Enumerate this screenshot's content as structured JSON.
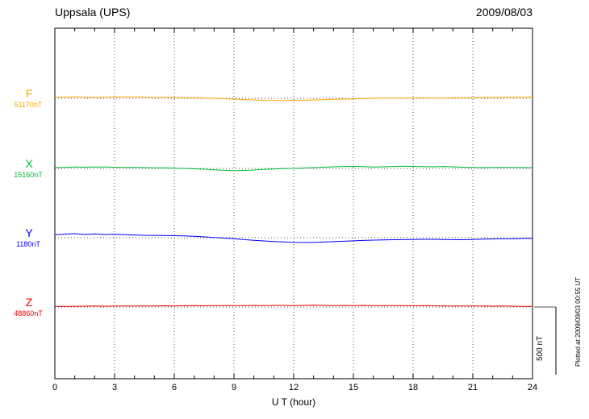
{
  "header": {
    "station": "Uppsala (UPS)",
    "date": "2009/08/03"
  },
  "axis": {
    "xlabel": "U T (hour)"
  },
  "scale_bar_label": "500 nT",
  "plotted_at": "Plotted at 2009/09/03 00:55 UT",
  "chart_data": {
    "type": "line",
    "title": "Uppsala (UPS)",
    "date": "2009/08/03",
    "xlabel": "U T (hour)",
    "x_range": [
      0,
      24
    ],
    "x_ticks": [
      0,
      3,
      6,
      9,
      12,
      15,
      18,
      21,
      24
    ],
    "grid": "vertical dotted lines every 3 hours; dotted horizontal baseline per trace",
    "scale_bar_nT": 500,
    "units": "nT deviation from listed baseline",
    "series": [
      {
        "name": "F",
        "baseline_label": "51170nT",
        "baseline_nT": 51170,
        "color": "#ffa500",
        "values": [
          8,
          9,
          10,
          9,
          8,
          9,
          10,
          11,
          10,
          9,
          8,
          7,
          6,
          5,
          4,
          2,
          0,
          -3,
          -6,
          -9,
          -12,
          -14,
          -15,
          -16,
          -15,
          -14,
          -12,
          -10,
          -8,
          -6,
          -4,
          -2,
          0,
          1,
          2,
          2,
          3,
          3,
          2,
          2,
          3,
          4,
          5,
          6,
          6,
          7,
          8,
          9,
          10
        ]
      },
      {
        "name": "X",
        "baseline_label": "15160nT",
        "baseline_nT": 15160,
        "color": "#00bb33",
        "values": [
          6,
          8,
          10,
          9,
          11,
          10,
          9,
          8,
          7,
          6,
          5,
          4,
          2,
          0,
          -3,
          -6,
          -10,
          -14,
          -17,
          -15,
          -12,
          -8,
          -5,
          -2,
          0,
          3,
          6,
          9,
          12,
          14,
          15,
          13,
          11,
          12,
          14,
          16,
          15,
          13,
          12,
          14,
          12,
          9,
          7,
          6,
          7,
          8,
          7,
          6,
          6
        ]
      },
      {
        "name": "Y",
        "baseline_label": "1180nT",
        "baseline_nT": 1180,
        "color": "#0000ff",
        "values": [
          22,
          26,
          30,
          24,
          28,
          23,
          25,
          22,
          20,
          18,
          17,
          16,
          15,
          13,
          10,
          6,
          2,
          -3,
          -8,
          -14,
          -19,
          -24,
          -28,
          -31,
          -34,
          -35,
          -34,
          -32,
          -29,
          -26,
          -23,
          -20,
          -18,
          -16,
          -15,
          -14,
          -13,
          -12,
          -12,
          -13,
          -14,
          -15,
          -13,
          -11,
          -9,
          -8,
          -7,
          -6,
          -5
        ]
      },
      {
        "name": "Z",
        "baseline_label": "48860nT",
        "baseline_nT": 48860,
        "color": "#ee0000",
        "values": [
          5,
          4,
          5,
          6,
          7,
          6,
          7,
          8,
          7,
          8,
          8,
          9,
          8,
          9,
          10,
          9,
          10,
          11,
          10,
          11,
          12,
          11,
          12,
          12,
          11,
          12,
          13,
          12,
          11,
          12,
          11,
          12,
          11,
          10,
          11,
          10,
          9,
          10,
          9,
          8,
          8,
          7,
          8,
          7,
          6,
          7,
          6,
          5,
          5
        ]
      }
    ]
  }
}
